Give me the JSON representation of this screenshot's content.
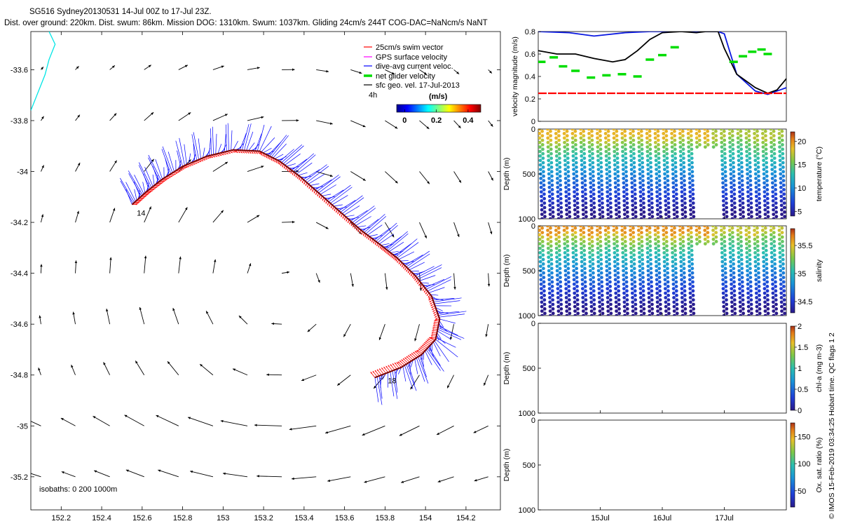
{
  "header": {
    "line1": "SG516 Sydney20130531 14-Jul 00Z to 17-Jul 23Z.",
    "line2": "Dist. over ground: 220km. Dist. swum: 86km. Mission DOG: 1310km. Swum: 1037km. Gliding 24cm/s 244T COG-DAC=NaNcm/s NaNT"
  },
  "credit": "© IMOS 15-Feb-2019 03:34:25 Hobart time. QC flags 1  2",
  "colors": {
    "swim": "#ff0000",
    "gps": "#ff00ff",
    "dac": "#0000ff",
    "net": "#00dd00",
    "geo": "#000000",
    "coast": "#00e5e5",
    "sw_speed_blue": "#0a18e0",
    "sw_speed_black": "#000000"
  },
  "chart_data": [
    {
      "id": "map",
      "type": "scatter",
      "title": "",
      "xlabel": "",
      "ylabel": "",
      "xlim": [
        152.05,
        154.37
      ],
      "ylim": [
        -35.33,
        -33.45
      ],
      "x_ticks": [
        "152.2",
        "152.4",
        "152.6",
        "152.8",
        "153",
        "153.2",
        "153.4",
        "153.6",
        "153.8",
        "154",
        "154.2"
      ],
      "y_ticks": [
        "-33.6",
        "-33.8",
        "-34",
        "-34.2",
        "-34.4",
        "-34.6",
        "-34.8",
        "-35",
        "-35.2"
      ],
      "legend": {
        "placement": "top-right",
        "entries": [
          "25cm/s swim vector",
          "GPS surface velocity",
          "dive-avg current veloc.",
          "net glider velocity",
          "sfc geo. vel. 17-Jul-2013"
        ]
      },
      "scale_label": "4h",
      "colorbar": {
        "label": "(m/s)",
        "ticks": [
          "0",
          "0.2",
          "0.4"
        ],
        "range": [
          -0.05,
          0.48
        ]
      },
      "isobaths_label": "isobaths: 0   200  1000m",
      "track": [
        [
          152.55,
          -34.13
        ],
        [
          152.62,
          -34.08
        ],
        [
          152.7,
          -34.03
        ],
        [
          152.8,
          -33.98
        ],
        [
          152.92,
          -33.94
        ],
        [
          153.05,
          -33.915
        ],
        [
          153.18,
          -33.92
        ],
        [
          153.28,
          -33.96
        ],
        [
          153.38,
          -34.02
        ],
        [
          153.48,
          -34.09
        ],
        [
          153.58,
          -34.16
        ],
        [
          153.68,
          -34.23
        ],
        [
          153.78,
          -34.29
        ],
        [
          153.86,
          -34.34
        ],
        [
          153.95,
          -34.41
        ],
        [
          154.03,
          -34.49
        ],
        [
          154.07,
          -34.58
        ],
        [
          154.05,
          -34.66
        ],
        [
          153.98,
          -34.72
        ],
        [
          153.88,
          -34.77
        ],
        [
          153.75,
          -34.81
        ]
      ],
      "track_labels": [
        {
          "text": "14",
          "lon": 152.56,
          "lat": -34.14
        },
        {
          "text": "18",
          "lon": 153.8,
          "lat": -34.8
        }
      ],
      "geo_vectors": {
        "lons": [
          152.1,
          152.27,
          152.44,
          152.61,
          152.78,
          152.95,
          153.12,
          153.29,
          153.46,
          153.63,
          153.8,
          153.97,
          154.14,
          154.31
        ],
        "lats": [
          -33.6,
          -33.8,
          -34.0,
          -34.2,
          -34.4,
          -34.6,
          -34.8,
          -35.0,
          -35.2
        ]
      }
    },
    {
      "id": "velocity",
      "type": "line",
      "ylabel": "velocity magnitude (m/s)",
      "ylim": [
        0,
        0.8
      ],
      "y_ticks": [
        "0",
        "0.2",
        "0.4",
        "0.6",
        "0.8"
      ],
      "xlim_days": [
        14.0,
        18.0
      ],
      "series": [
        {
          "color": "blue",
          "x": [
            14.0,
            14.5,
            14.9,
            15.4,
            15.8,
            16.2,
            16.55,
            16.62,
            16.75,
            16.9,
            17.0,
            17.2,
            17.5,
            17.7,
            17.9,
            18.0
          ],
          "y": [
            0.8,
            0.79,
            0.76,
            0.79,
            0.8,
            0.8,
            0.8,
            0.8,
            0.8,
            0.8,
            0.78,
            0.42,
            0.27,
            0.24,
            0.28,
            0.3
          ]
        },
        {
          "color": "black",
          "x": [
            14.0,
            14.3,
            14.6,
            14.9,
            15.2,
            15.4,
            15.6,
            15.8,
            16.0,
            16.3,
            16.55,
            16.7,
            16.9,
            17.0,
            17.2,
            17.5,
            17.7,
            17.85,
            18.0
          ],
          "y": [
            0.63,
            0.6,
            0.6,
            0.56,
            0.53,
            0.55,
            0.63,
            0.73,
            0.79,
            0.8,
            0.79,
            0.8,
            0.8,
            0.65,
            0.42,
            0.3,
            0.25,
            0.28,
            0.38
          ]
        },
        {
          "color": "green",
          "x": [
            14.05,
            14.25,
            14.4,
            14.6,
            14.85,
            15.1,
            15.35,
            15.6,
            15.8,
            16.0,
            16.2,
            17.15,
            17.3,
            17.45,
            17.6,
            17.7
          ],
          "y": [
            0.53,
            0.57,
            0.49,
            0.45,
            0.39,
            0.41,
            0.42,
            0.4,
            0.55,
            0.59,
            0.66,
            0.53,
            0.58,
            0.62,
            0.64,
            0.6
          ]
        },
        {
          "color": "red",
          "x": [
            14.0,
            18.0
          ],
          "y": [
            0.25,
            0.25
          ]
        }
      ]
    },
    {
      "id": "temperature",
      "type": "heatmap",
      "ylabel": "Depth (m)",
      "ylim": [
        1000,
        0
      ],
      "y_ticks": [
        "0",
        "500",
        "1000"
      ],
      "colorbar_label": "temperature (°C)",
      "colorbar_ticks": [
        "5",
        "10",
        "15",
        "20"
      ],
      "crange": [
        4,
        22
      ]
    },
    {
      "id": "salinity",
      "type": "heatmap",
      "ylabel": "Depth (m)",
      "ylim": [
        1000,
        0
      ],
      "y_ticks": [
        "0",
        "500",
        "1000"
      ],
      "colorbar_label": "salinity",
      "colorbar_ticks": [
        "34.5",
        "35",
        "35.5"
      ],
      "crange": [
        34.3,
        35.8
      ]
    },
    {
      "id": "chla",
      "type": "heatmap",
      "ylabel": "Depth (m)",
      "ylim": [
        1000,
        0
      ],
      "y_ticks": [
        "0",
        "500",
        "1000"
      ],
      "colorbar_label": "chl-a (mg m-3)",
      "colorbar_ticks": [
        "0",
        "0.5",
        "1",
        "1.5",
        "2"
      ],
      "crange": [
        0,
        2
      ]
    },
    {
      "id": "oxygen",
      "type": "heatmap",
      "ylabel": "Depth (m)",
      "ylim": [
        1000,
        0
      ],
      "y_ticks": [
        "0",
        "500",
        "1000"
      ],
      "colorbar_label": "Ox. sat. ratio (%)",
      "colorbar_ticks": [
        "50",
        "100",
        "150"
      ],
      "crange": [
        20,
        175
      ],
      "x_ticks": [
        "15Jul",
        "16Jul",
        "17Jul"
      ],
      "x_tick_days": [
        15,
        16,
        17
      ]
    }
  ]
}
